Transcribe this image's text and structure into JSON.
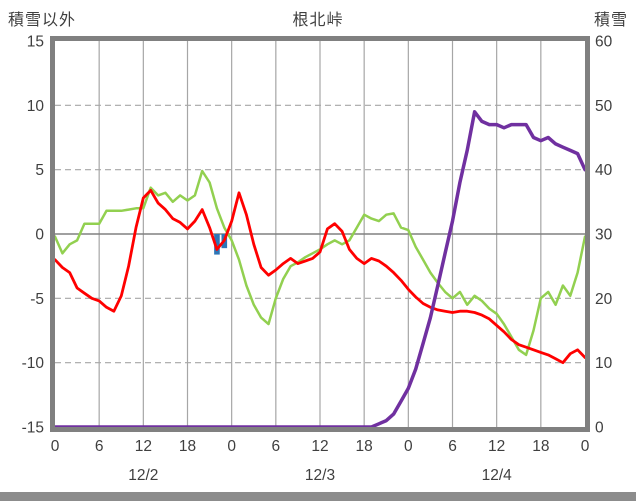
{
  "header": {
    "left_axis_title": "積雪以外",
    "title": "根北峠",
    "right_axis_title": "積雪"
  },
  "chart_data": {
    "type": "line",
    "title": "根北峠",
    "grid": true,
    "legend": "none",
    "x_axis": {
      "hours_total": 72,
      "tick_interval_hours": 6,
      "tick_labels": [
        "0",
        "6",
        "12",
        "18",
        "0",
        "6",
        "12",
        "18",
        "0",
        "6",
        "12",
        "18",
        "0"
      ],
      "date_labels": [
        {
          "label": "12/2",
          "t": 12
        },
        {
          "label": "12/3",
          "t": 36
        },
        {
          "label": "12/4",
          "t": 60
        }
      ]
    },
    "left_axis": {
      "title": "積雪以外",
      "min": -15,
      "max": 15,
      "ticks": [
        15,
        10,
        5,
        0,
        -5,
        -10,
        -15
      ]
    },
    "right_axis": {
      "title": "積雪",
      "min": 0,
      "max": 60,
      "ticks": [
        60,
        50,
        40,
        30,
        20,
        10,
        0
      ]
    },
    "series": [
      {
        "name": "green-line",
        "axis": "left",
        "color": "#92d050",
        "width": 2.5,
        "values": [
          -0.2,
          -1.5,
          -0.8,
          -0.5,
          0.8,
          0.8,
          0.8,
          1.8,
          1.8,
          1.8,
          1.9,
          2.0,
          2.0,
          3.6,
          3.0,
          3.2,
          2.5,
          3.0,
          2.6,
          3.0,
          4.9,
          4.0,
          2.0,
          0.5,
          -0.5,
          -2.0,
          -4.0,
          -5.5,
          -6.5,
          -7.0,
          -5.0,
          -3.5,
          -2.5,
          -2.2,
          -1.8,
          -1.5,
          -1.2,
          -0.8,
          -0.5,
          -0.8,
          -0.5,
          0.5,
          1.5,
          1.2,
          1.0,
          1.5,
          1.6,
          0.5,
          0.3,
          -1.0,
          -2.0,
          -3.0,
          -3.8,
          -4.5,
          -5.0,
          -4.5,
          -5.5,
          -4.8,
          -5.2,
          -5.8,
          -6.2,
          -7.0,
          -8.0,
          -9.0,
          -9.4,
          -7.5,
          -5.0,
          -4.5,
          -5.5,
          -4.0,
          -4.8,
          -3.0,
          -0.2
        ]
      },
      {
        "name": "red-line",
        "axis": "left",
        "color": "#ff0000",
        "width": 2.8,
        "values": [
          -2.0,
          -2.6,
          -3.0,
          -4.2,
          -4.6,
          -5.0,
          -5.2,
          -5.7,
          -6.0,
          -4.8,
          -2.5,
          0.5,
          2.8,
          3.4,
          2.4,
          1.9,
          1.2,
          0.9,
          0.4,
          1.0,
          1.9,
          0.5,
          -1.2,
          -0.5,
          1.0,
          3.2,
          1.5,
          -0.8,
          -2.6,
          -3.2,
          -2.8,
          -2.3,
          -1.9,
          -2.3,
          -2.1,
          -1.9,
          -1.4,
          0.4,
          0.8,
          0.2,
          -1.2,
          -1.9,
          -2.3,
          -1.9,
          -2.1,
          -2.5,
          -3.0,
          -3.6,
          -4.3,
          -4.9,
          -5.4,
          -5.7,
          -5.9,
          -6.0,
          -6.1,
          -6.0,
          -6.0,
          -6.1,
          -6.3,
          -6.6,
          -7.1,
          -7.6,
          -8.2,
          -8.6,
          -8.8,
          -9.0,
          -9.2,
          -9.4,
          -9.7,
          -10.0,
          -9.3,
          -9.0,
          -9.6
        ]
      },
      {
        "name": "purple-line",
        "axis": "right",
        "color": "#7030a0",
        "width": 3.5,
        "values": [
          0,
          0,
          0,
          0,
          0,
          0,
          0,
          0,
          0,
          0,
          0,
          0,
          0,
          0,
          0,
          0,
          0,
          0,
          0,
          0,
          0,
          0,
          0,
          0,
          0,
          0,
          0,
          0,
          0,
          0,
          0,
          0,
          0,
          0,
          0,
          0,
          0,
          0,
          0,
          0,
          0,
          0,
          0,
          0,
          0.5,
          1,
          2,
          4,
          6,
          9,
          13,
          17,
          22,
          27,
          32,
          38,
          43,
          49,
          47.5,
          47,
          47,
          46.5,
          47,
          47,
          47,
          45,
          44.5,
          45,
          44,
          43.5,
          43,
          42.5,
          40
        ]
      }
    ],
    "bars": {
      "name": "blue-bars",
      "axis": "left",
      "color": "#2e75b6",
      "points": [
        {
          "t": 22,
          "value": -1.6
        },
        {
          "t": 23,
          "value": -1.1
        }
      ]
    },
    "style": {
      "border_color": "#808080",
      "grid_color": "#a6a6a6",
      "zero_line_color": "#808080",
      "text_color": "#3f3f3f"
    }
  }
}
